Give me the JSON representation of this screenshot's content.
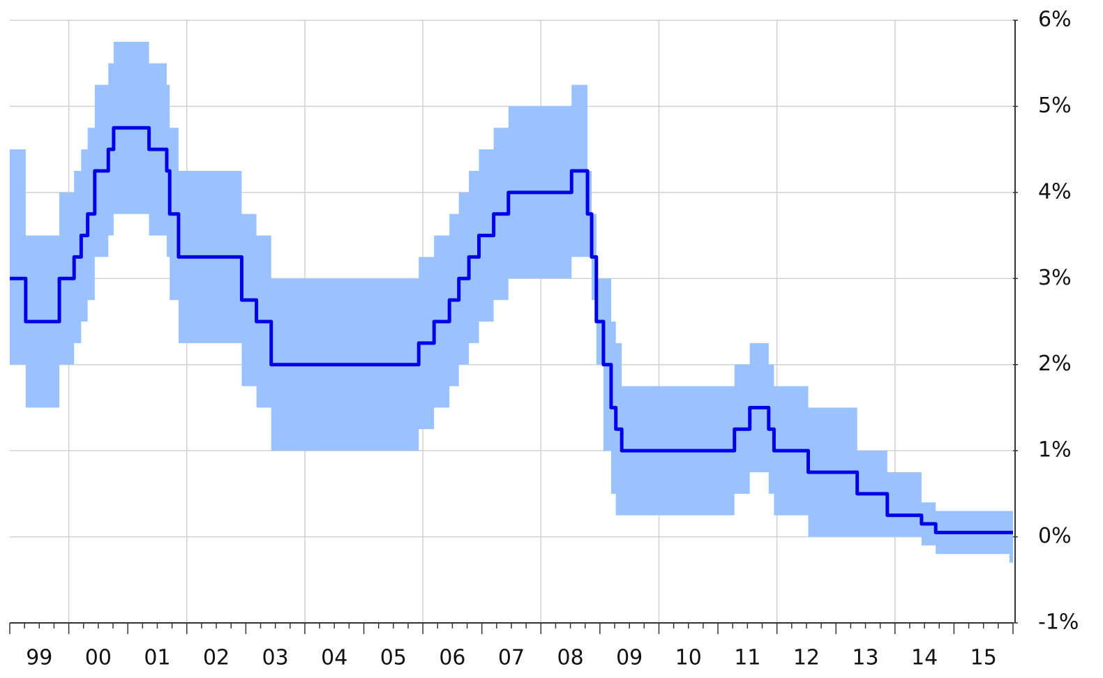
{
  "chart_data": {
    "type": "line",
    "x": [
      1999.0,
      1999.27,
      1999.84,
      2000.09,
      2000.21,
      2000.32,
      2000.44,
      2000.67,
      2000.76,
      2001.36,
      2001.66,
      2001.71,
      2001.86,
      2002.93,
      2003.18,
      2003.43,
      2005.93,
      2006.19,
      2006.45,
      2006.61,
      2006.78,
      2006.95,
      2007.2,
      2007.45,
      2008.52,
      2008.79,
      2008.86,
      2008.94,
      2009.06,
      2009.19,
      2009.27,
      2009.37,
      2011.28,
      2011.54,
      2011.86,
      2011.95,
      2012.53,
      2013.36,
      2013.87,
      2014.45,
      2014.69,
      2015.94,
      2016.0
    ],
    "band": {
      "color": "#99c2ff",
      "upper": [
        4.5,
        3.5,
        4.0,
        4.25,
        4.5,
        4.75,
        5.25,
        5.5,
        5.75,
        5.5,
        5.25,
        4.75,
        4.25,
        3.75,
        3.5,
        3.0,
        3.25,
        3.5,
        3.75,
        4.0,
        4.25,
        4.5,
        4.75,
        5.0,
        5.25,
        4.25,
        3.75,
        3.0,
        3.0,
        2.5,
        2.25,
        1.75,
        2.0,
        2.25,
        2.0,
        1.75,
        1.5,
        1.0,
        0.75,
        0.4,
        0.3,
        0.3,
        0.3
      ],
      "lower": [
        2.0,
        1.5,
        2.0,
        2.25,
        2.5,
        2.75,
        3.25,
        3.5,
        3.75,
        3.5,
        3.25,
        2.75,
        2.25,
        1.75,
        1.5,
        1.0,
        1.25,
        1.5,
        1.75,
        2.0,
        2.25,
        2.5,
        2.75,
        3.0,
        3.25,
        3.25,
        2.75,
        2.0,
        1.0,
        0.5,
        0.25,
        0.25,
        0.5,
        0.75,
        0.5,
        0.25,
        0,
        0,
        0,
        -0.1,
        -0.2,
        -0.3,
        -0.3
      ]
    },
    "series": [
      {
        "color": "#0000e6",
        "values": [
          3.0,
          2.5,
          3.0,
          3.25,
          3.5,
          3.75,
          4.25,
          4.5,
          4.75,
          4.5,
          4.25,
          3.75,
          3.25,
          2.75,
          2.5,
          2.0,
          2.25,
          2.5,
          2.75,
          3.0,
          3.25,
          3.5,
          3.75,
          4.0,
          4.25,
          3.75,
          3.25,
          2.5,
          2.0,
          1.5,
          1.25,
          1.0,
          1.25,
          1.5,
          1.25,
          1.0,
          0.75,
          0.5,
          0.25,
          0.15,
          0.05,
          0.05,
          0.05
        ]
      }
    ],
    "xlim": [
      1999,
      2016
    ],
    "xticks": [
      {
        "value": 1999.5,
        "label": "99"
      },
      {
        "value": 2000.5,
        "label": "00"
      },
      {
        "value": 2001.5,
        "label": "01"
      },
      {
        "value": 2002.5,
        "label": "02"
      },
      {
        "value": 2003.5,
        "label": "03"
      },
      {
        "value": 2004.5,
        "label": "04"
      },
      {
        "value": 2005.5,
        "label": "05"
      },
      {
        "value": 2006.5,
        "label": "06"
      },
      {
        "value": 2007.5,
        "label": "07"
      },
      {
        "value": 2008.5,
        "label": "08"
      },
      {
        "value": 2009.5,
        "label": "09"
      },
      {
        "value": 2010.5,
        "label": "10"
      },
      {
        "value": 2011.5,
        "label": "11"
      },
      {
        "value": 2012.5,
        "label": "12"
      },
      {
        "value": 2013.5,
        "label": "13"
      },
      {
        "value": 2014.5,
        "label": "14"
      },
      {
        "value": 2015.5,
        "label": "15"
      }
    ],
    "ylim": [
      -1,
      6
    ],
    "yticks": [
      {
        "value": -1,
        "label": "-1%"
      },
      {
        "value": 0,
        "label": "0%"
      },
      {
        "value": 1,
        "label": "1%"
      },
      {
        "value": 2,
        "label": "2%"
      },
      {
        "value": 3,
        "label": "3%"
      },
      {
        "value": 4,
        "label": "4%"
      },
      {
        "value": 5,
        "label": "5%"
      },
      {
        "value": 6,
        "label": "6%"
      }
    ],
    "grid": true
  }
}
